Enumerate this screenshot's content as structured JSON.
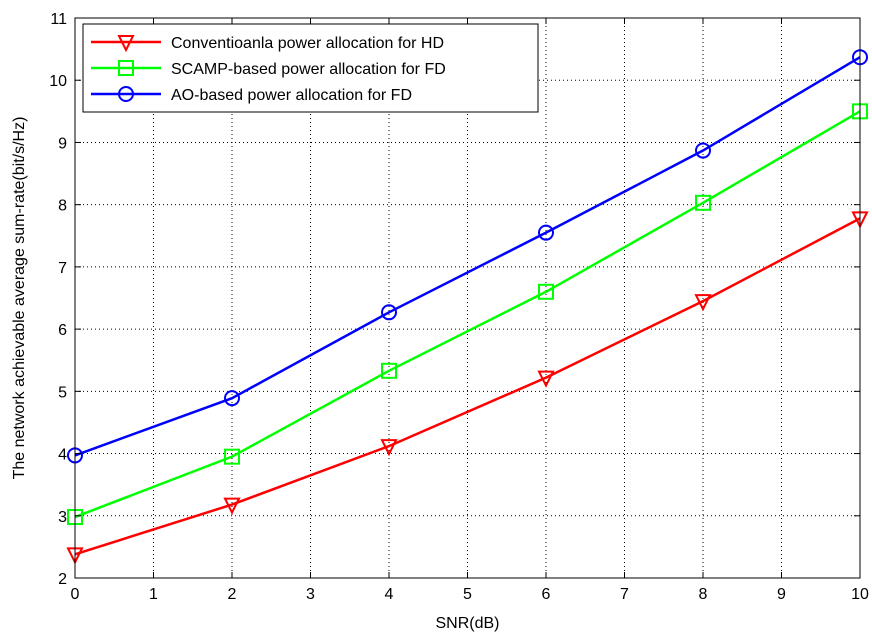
{
  "chart_data": {
    "type": "line",
    "xlabel": "SNR(dB)",
    "ylabel": "The network achievable average sum-rate(bit/s/Hz)",
    "xlim": [
      0,
      10
    ],
    "ylim": [
      2,
      11
    ],
    "x_ticks": [
      "0",
      "1",
      "2",
      "3",
      "4",
      "5",
      "6",
      "7",
      "8",
      "9",
      "10"
    ],
    "y_ticks": [
      "2",
      "3",
      "4",
      "5",
      "6",
      "7",
      "8",
      "9",
      "10",
      "11"
    ],
    "grid": true,
    "grid_style": "dotted",
    "legend_position": "top-left",
    "x": [
      0,
      2,
      4,
      6,
      8,
      10
    ],
    "series": [
      {
        "name": "Conventioanla power allocation for HD",
        "color": "#ff0000",
        "marker": "triangle-down",
        "values": [
          2.38,
          3.18,
          4.12,
          5.22,
          6.45,
          7.78
        ]
      },
      {
        "name": "SCAMP-based power allocation for FD",
        "color": "#00ff00",
        "marker": "square",
        "values": [
          2.98,
          3.95,
          5.33,
          6.6,
          8.03,
          9.5
        ]
      },
      {
        "name": "AO-based power allocation for FD",
        "color": "#0000ff",
        "marker": "circle",
        "values": [
          3.97,
          4.89,
          6.27,
          7.55,
          8.87,
          10.37
        ]
      }
    ]
  }
}
